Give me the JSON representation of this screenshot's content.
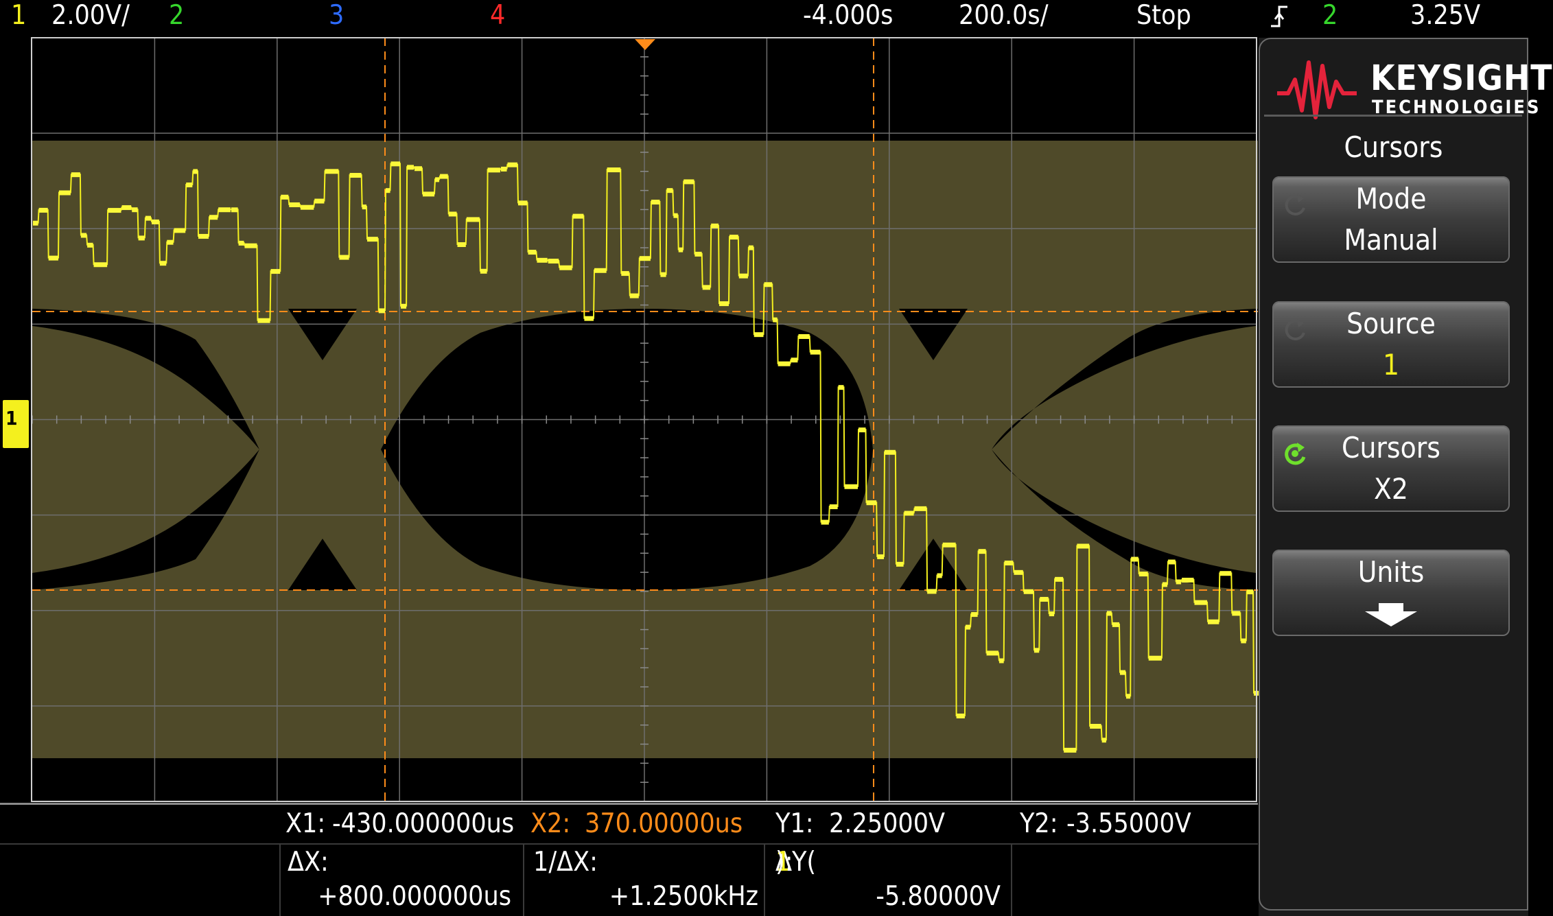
{
  "topbar": {
    "ch1_num": "1",
    "ch1_scale": "2.00V/",
    "ch2_num": "2",
    "ch3_num": "3",
    "ch4_num": "4",
    "time_delay": "-4.000s",
    "time_scale": "200.0s/",
    "run_state": "Stop",
    "trigger_source": "2",
    "trigger_level": "3.25V"
  },
  "screen": {
    "ground_marker": "1"
  },
  "sidepanel": {
    "logo_line1": "KEYSIGHT",
    "logo_line2": "TECHNOLOGIES",
    "menu_title": "Cursors",
    "softkeys": [
      {
        "label": "Mode",
        "value": "Manual"
      },
      {
        "label": "Source",
        "value": "1"
      },
      {
        "label": "Cursors",
        "value": "X2"
      },
      {
        "label": "Units",
        "value": ""
      }
    ]
  },
  "readout": {
    "x1_label": "X1:",
    "x1_value": "-430.000000us",
    "x2_label": "X2:",
    "x2_value": "370.00000us",
    "y1_label": "Y1:",
    "y1_value": "2.25000V",
    "y2_label": "Y2:",
    "y2_value": "-3.55000V",
    "dx_label": "ΔX:",
    "dx_value": "+800.000000us",
    "inv_dx_label": "1/ΔX:",
    "inv_dx_value": "+1.2500kHz",
    "dy_label_prefix": "ΔY(",
    "dy_label_channel": "1",
    "dy_label_suffix": "):",
    "dy_value": "-5.80000V"
  },
  "colors": {
    "channel1": "#f4f01e",
    "channel2": "#36d62c",
    "channel3": "#2e6bff",
    "channel4": "#ff2a2a",
    "cursor": "#ff8c1a",
    "eye_fill": "#4f4a29",
    "grid": "#8a8a8a",
    "background": "#000000"
  }
}
